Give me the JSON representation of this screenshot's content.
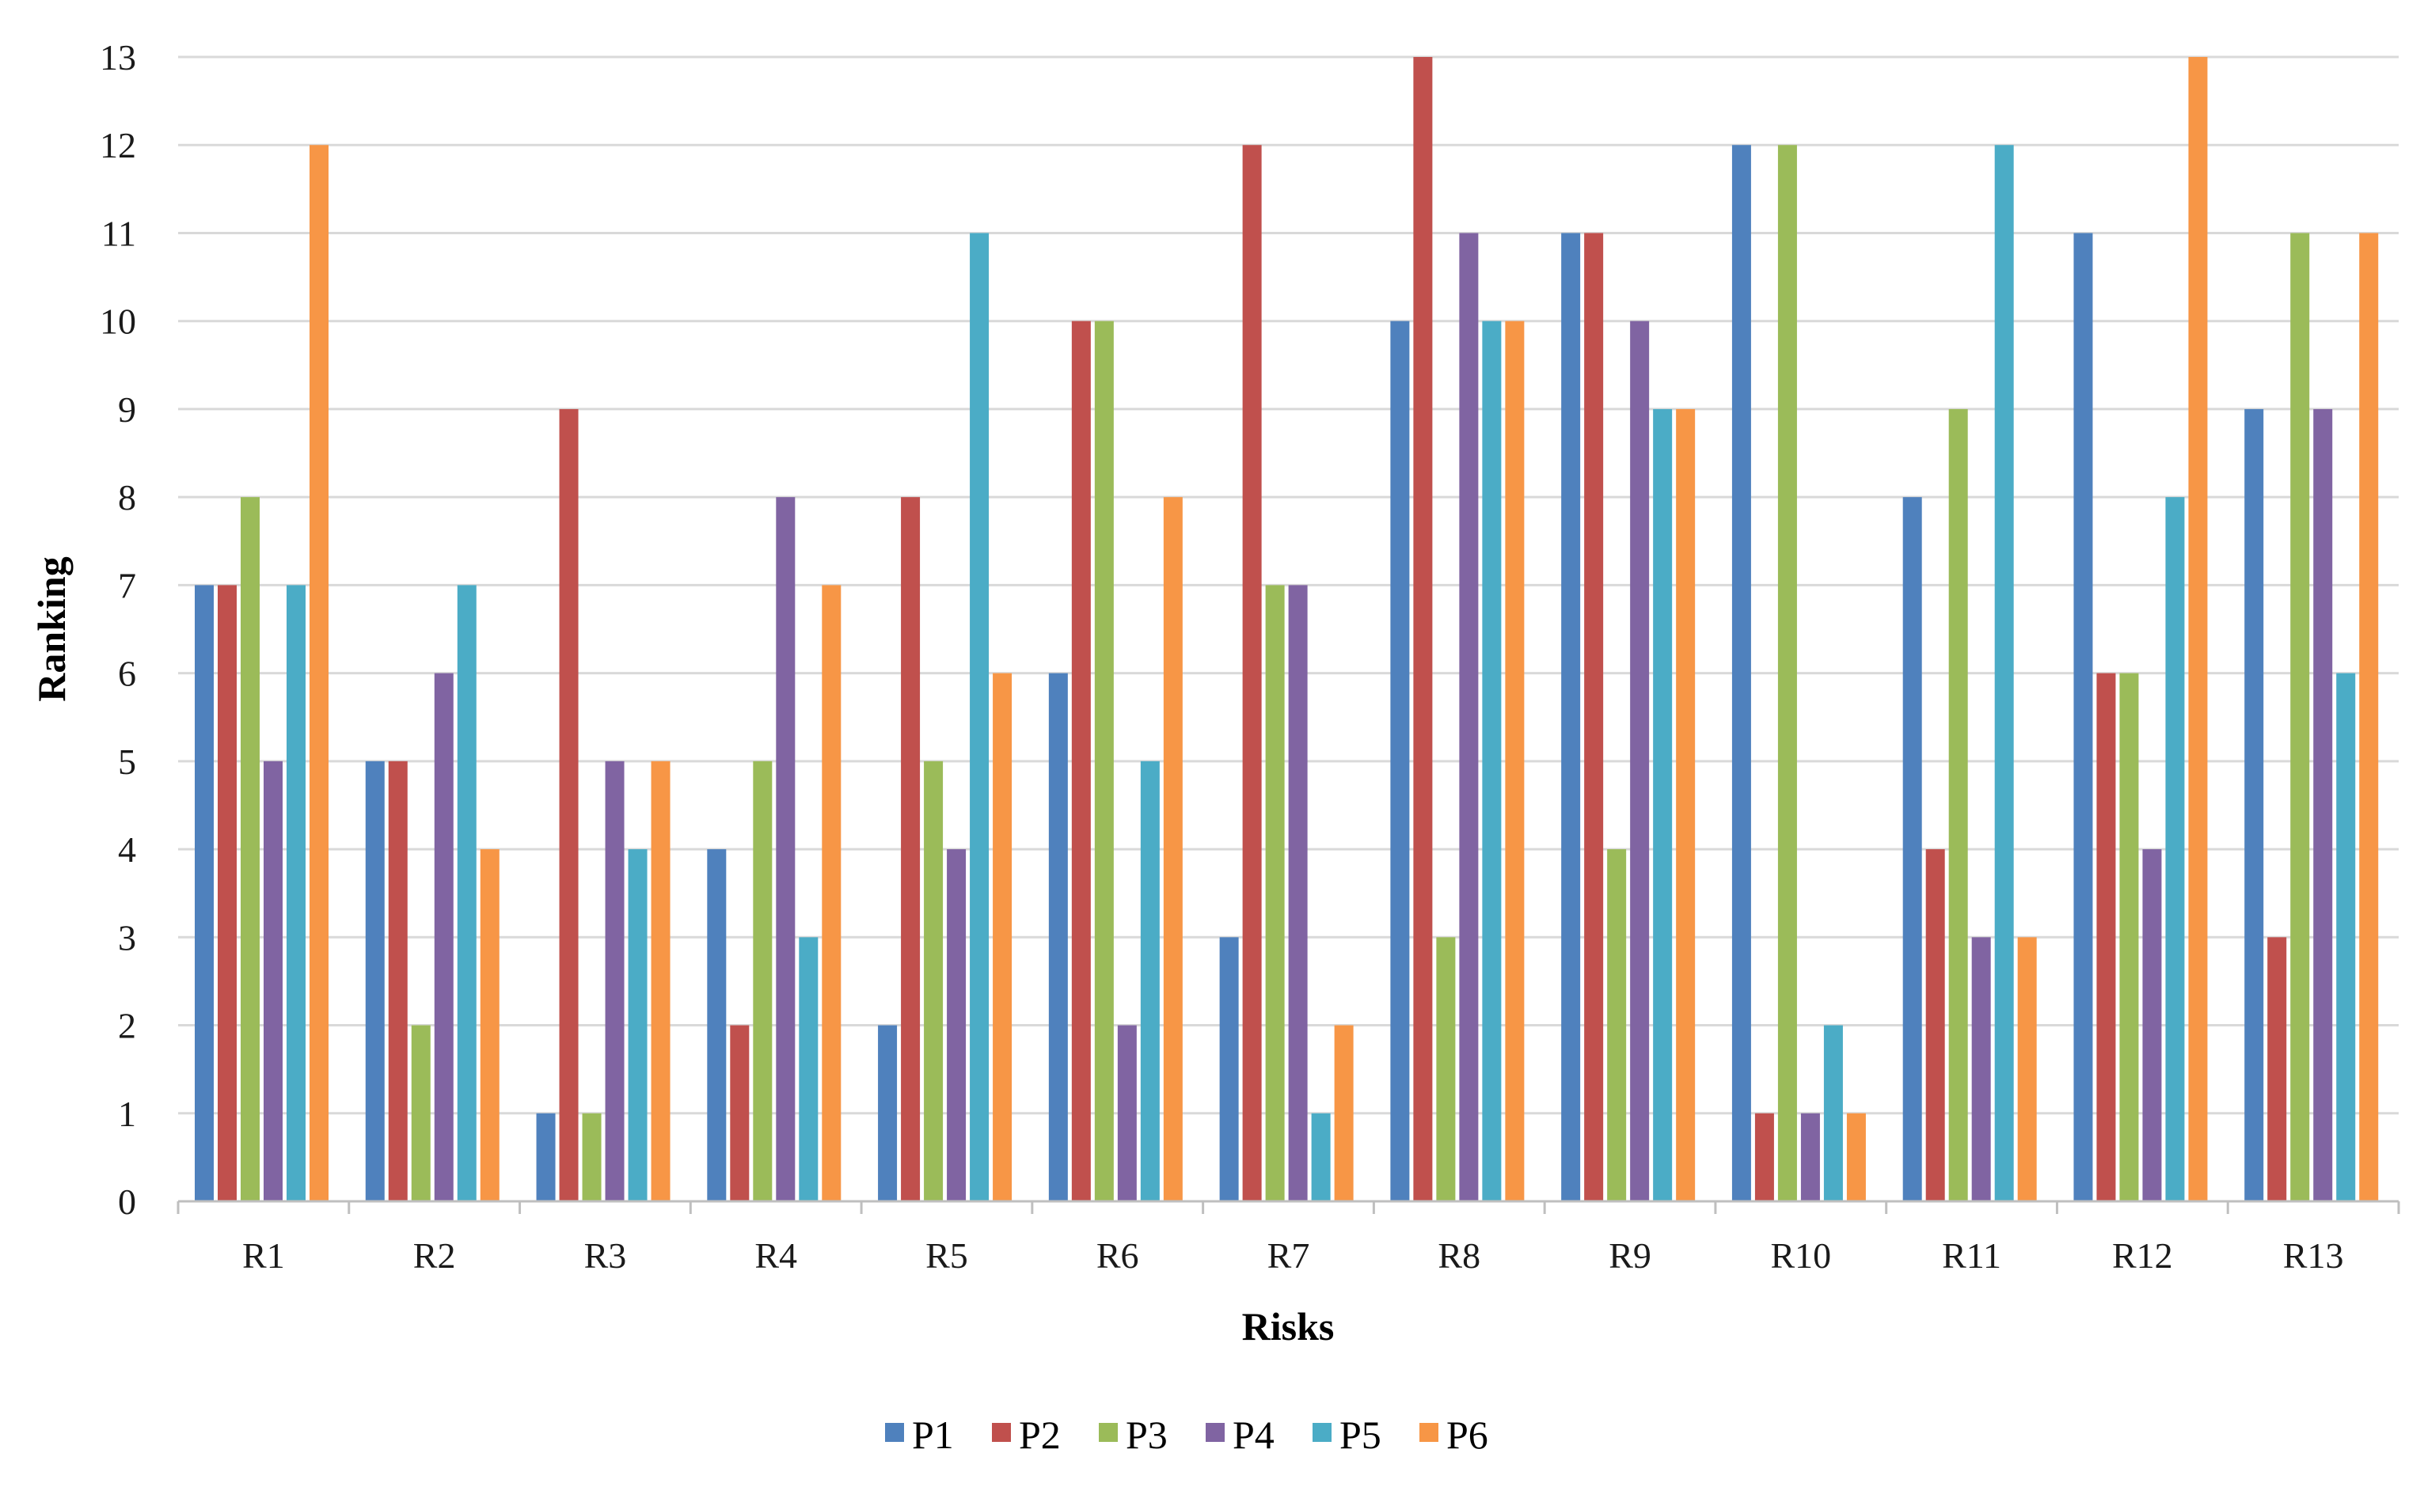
{
  "chart_data": {
    "type": "bar",
    "title": "",
    "xlabel": "Risks",
    "ylabel": "Ranking",
    "ylim": [
      0,
      13
    ],
    "yticks": [
      "0",
      "1",
      "2",
      "3",
      "4",
      "5",
      "6",
      "7",
      "8",
      "9",
      "10",
      "11",
      "12",
      "13"
    ],
    "grid": true,
    "legend_position": "bottom-center",
    "categories": [
      "R1",
      "R2",
      "R3",
      "R4",
      "R5",
      "R6",
      "R7",
      "R8",
      "R9",
      "R10",
      "R11",
      "R12",
      "R13"
    ],
    "series": [
      {
        "name": "P1",
        "color": "#4f81bd",
        "values": [
          7,
          5,
          1,
          4,
          2,
          6,
          3,
          10,
          11,
          12,
          8,
          11,
          9
        ]
      },
      {
        "name": "P2",
        "color": "#c0504d",
        "values": [
          7,
          5,
          9,
          2,
          8,
          10,
          12,
          13,
          11,
          1,
          4,
          6,
          3
        ]
      },
      {
        "name": "P3",
        "color": "#9bbb59",
        "values": [
          8,
          2,
          1,
          5,
          5,
          10,
          7,
          3,
          4,
          12,
          9,
          6,
          11
        ]
      },
      {
        "name": "P4",
        "color": "#8064a2",
        "values": [
          5,
          6,
          5,
          8,
          4,
          2,
          7,
          11,
          10,
          1,
          3,
          4,
          9
        ]
      },
      {
        "name": "P5",
        "color": "#4bacc6",
        "values": [
          7,
          7,
          4,
          3,
          11,
          5,
          1,
          10,
          9,
          2,
          12,
          8,
          6
        ]
      },
      {
        "name": "P6",
        "color": "#f79646",
        "values": [
          12,
          4,
          5,
          7,
          6,
          8,
          2,
          10,
          9,
          1,
          3,
          13,
          11
        ]
      }
    ],
    "gridline_color": "#d9d9d9",
    "axis_color": "#bfbfbf"
  }
}
